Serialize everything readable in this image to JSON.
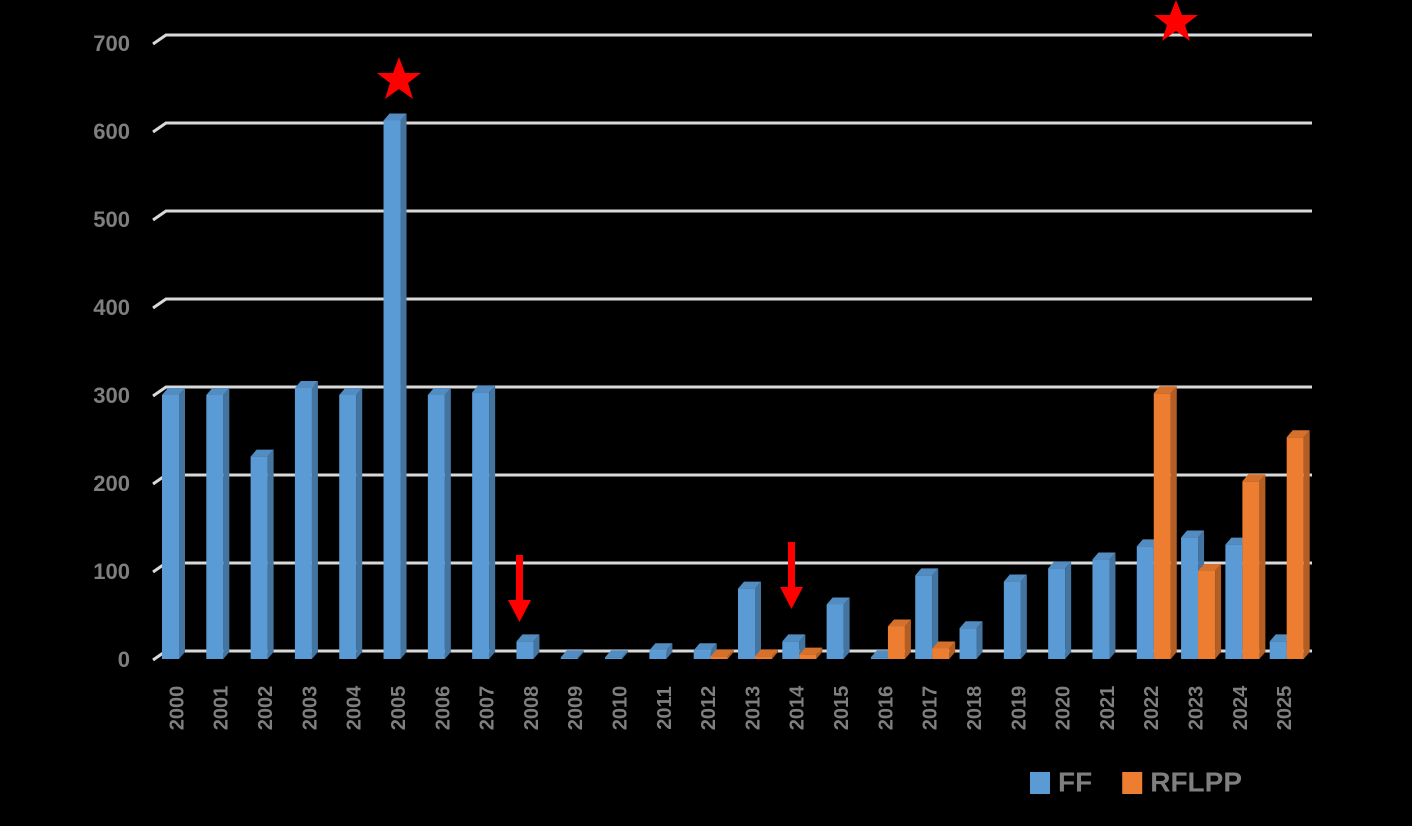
{
  "chart_data": {
    "type": "bar",
    "categories": [
      "2000",
      "2001",
      "2002",
      "2003",
      "2004",
      "2005",
      "2006",
      "2007",
      "2008",
      "2009",
      "2010",
      "2011",
      "2012",
      "2013",
      "2014",
      "2015",
      "2016",
      "2017",
      "2018",
      "2019",
      "2020",
      "2021",
      "2022",
      "2023",
      "2024",
      "2025"
    ],
    "series": [
      {
        "name": "FF",
        "color": "#5b9bd5",
        "values": [
          300,
          300,
          230,
          308,
          300,
          612,
          300,
          303,
          20,
          2,
          2,
          10,
          10,
          80,
          20,
          62,
          2,
          95,
          35,
          88,
          103,
          113,
          128,
          138,
          130,
          20
        ]
      },
      {
        "name": "RFLPP",
        "color": "#ed7d31",
        "values": [
          null,
          null,
          null,
          null,
          null,
          null,
          null,
          null,
          null,
          null,
          null,
          null,
          3,
          3,
          5,
          null,
          37,
          12,
          null,
          null,
          null,
          null,
          302,
          100,
          202,
          252
        ]
      }
    ],
    "ylim": [
      0,
      700
    ],
    "yticks": [
      0,
      100,
      200,
      300,
      400,
      500,
      600,
      700
    ],
    "grid": true
  }
}
